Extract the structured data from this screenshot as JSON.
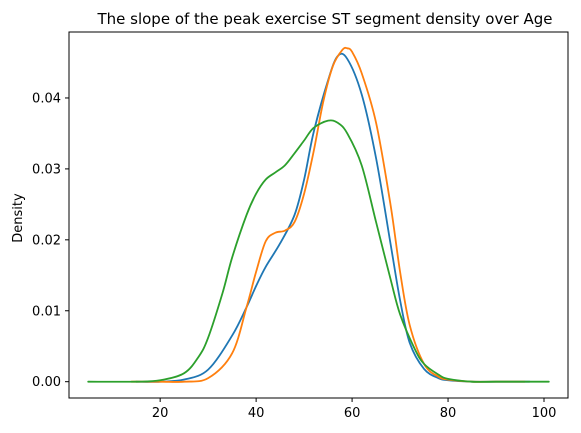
{
  "chart_data": {
    "type": "line",
    "title": "The slope of the peak exercise ST segment density over Age",
    "xlabel": "",
    "ylabel": "Density",
    "xlim": [
      1,
      105
    ],
    "ylim": [
      -0.0023,
      0.0493
    ],
    "x_ticks": [
      20,
      40,
      60,
      80,
      100
    ],
    "x_tick_labels": [
      "20",
      "40",
      "60",
      "80",
      "100"
    ],
    "y_ticks": [
      0.0,
      0.01,
      0.02,
      0.03,
      0.04
    ],
    "y_tick_labels": [
      "0.00",
      "0.01",
      "0.02",
      "0.03",
      "0.04"
    ],
    "grid": false,
    "legend": "none",
    "series": [
      {
        "color": "#1f77b4",
        "x": [
          15,
          20,
          25,
          30,
          35,
          38,
          40,
          42,
          45,
          48,
          50,
          52,
          55,
          57,
          59,
          62,
          65,
          68,
          70,
          72,
          75,
          78,
          80,
          85,
          90,
          97
        ],
        "y": [
          0.0,
          0.0,
          0.0003,
          0.0017,
          0.0065,
          0.0105,
          0.0135,
          0.0162,
          0.0195,
          0.0235,
          0.0285,
          0.0352,
          0.0425,
          0.0459,
          0.0455,
          0.0405,
          0.0315,
          0.0195,
          0.0115,
          0.0055,
          0.0018,
          0.0005,
          0.0002,
          0.0,
          0.0,
          0.0
        ]
      },
      {
        "color": "#ff7f0e",
        "x": [
          14,
          20,
          25,
          30,
          35,
          38,
          40,
          42,
          44,
          46,
          48,
          50,
          52,
          54,
          56,
          58,
          59,
          60,
          62,
          65,
          68,
          70,
          72,
          75,
          78,
          80,
          85,
          90,
          96
        ],
        "y": [
          0.0,
          0.0,
          0.0,
          0.0005,
          0.004,
          0.0105,
          0.0155,
          0.0198,
          0.021,
          0.0213,
          0.0225,
          0.0265,
          0.0325,
          0.0395,
          0.0445,
          0.0468,
          0.047,
          0.0465,
          0.0435,
          0.0365,
          0.025,
          0.0155,
          0.008,
          0.0025,
          0.0007,
          0.0003,
          0.0,
          0.0,
          0.0
        ]
      },
      {
        "color": "#2ca02c",
        "x": [
          5,
          15,
          20,
          25,
          28,
          30,
          33,
          35,
          38,
          40,
          42,
          44,
          46,
          48,
          50,
          52,
          55,
          57,
          59,
          62,
          65,
          68,
          70,
          73,
          75,
          78,
          80,
          85,
          90,
          95,
          101
        ],
        "y": [
          0.0,
          0.0,
          0.0002,
          0.0012,
          0.0035,
          0.0062,
          0.0125,
          0.0175,
          0.0235,
          0.0265,
          0.0285,
          0.0295,
          0.0305,
          0.0322,
          0.034,
          0.0358,
          0.0368,
          0.0365,
          0.035,
          0.0305,
          0.0225,
          0.0145,
          0.0095,
          0.0047,
          0.0025,
          0.001,
          0.0004,
          0.0,
          0.0,
          0.0,
          0.0
        ]
      }
    ]
  }
}
